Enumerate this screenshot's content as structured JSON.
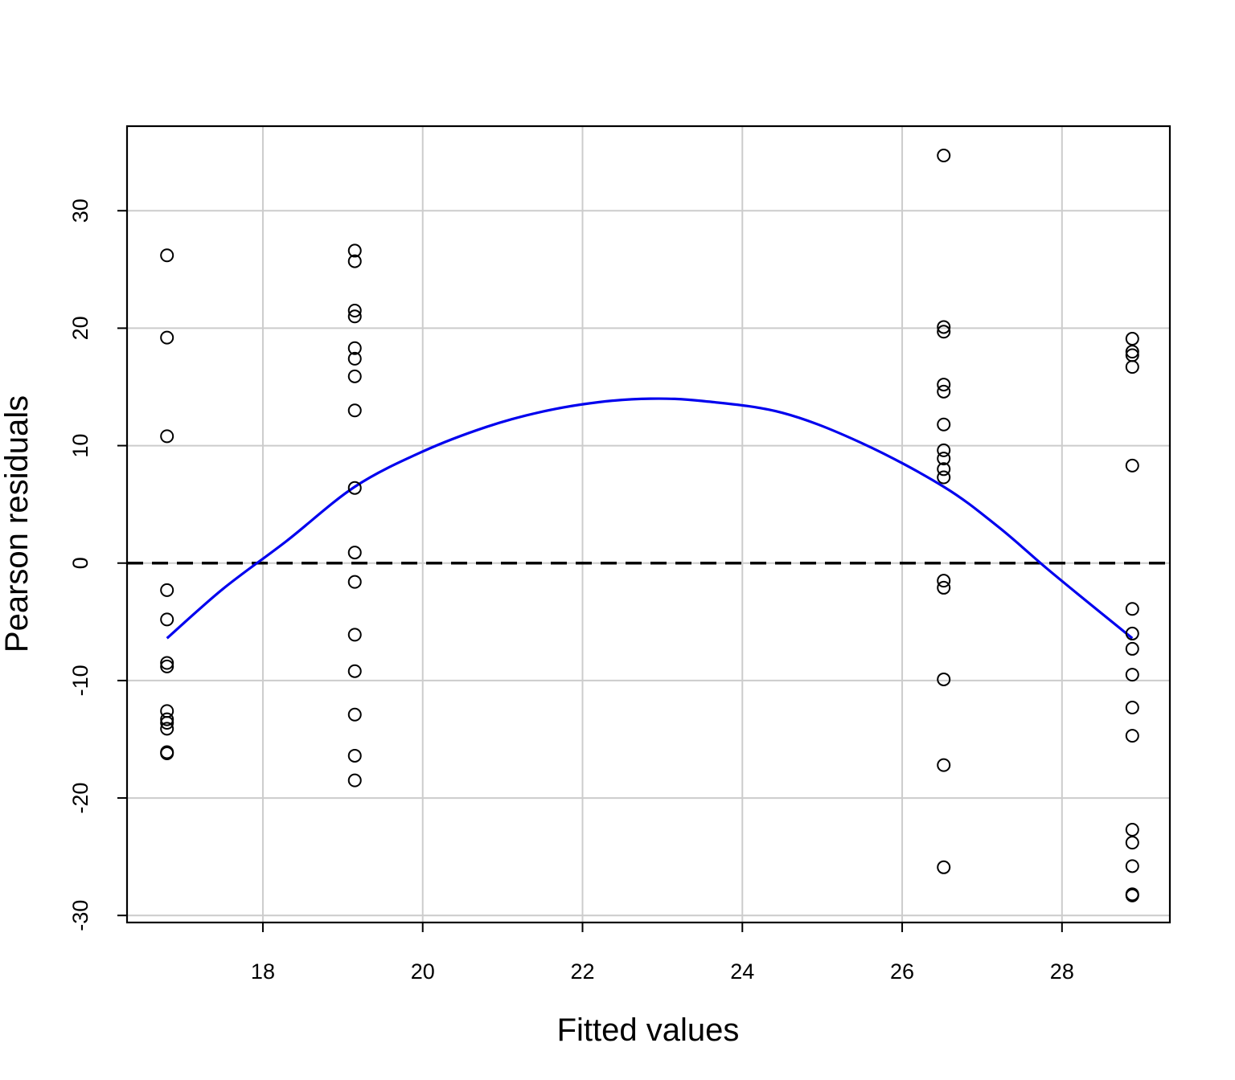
{
  "chart_data": {
    "type": "scatter",
    "title": "",
    "xlabel": "Fitted values",
    "ylabel": "Pearson residuals",
    "xlim": [
      16.3,
      29.35
    ],
    "ylim": [
      -30.6,
      37.2
    ],
    "x_ticks": [
      18,
      20,
      22,
      24,
      26,
      28
    ],
    "y_ticks": [
      -30,
      -20,
      -10,
      0,
      10,
      20,
      30
    ],
    "x_tick_labels": [
      "18",
      "20",
      "22",
      "24",
      "26",
      "28"
    ],
    "y_tick_labels": [
      "-30",
      "-20",
      "-10",
      "0",
      "10",
      "20",
      "30"
    ],
    "grid": true,
    "reference_line": {
      "y": 0,
      "style": "dashed",
      "color": "#000000"
    },
    "smooth_curve": {
      "color": "#0000ee",
      "x": [
        16.8,
        17.5,
        18.3,
        19.15,
        20.0,
        20.8,
        21.5,
        22.2,
        22.85,
        23.5,
        24.5,
        25.5,
        26.52,
        27.2,
        27.8,
        28.3,
        28.88
      ],
      "y": [
        -6.4,
        -2.2,
        1.9,
        6.5,
        9.5,
        11.6,
        12.9,
        13.7,
        14.0,
        13.8,
        12.8,
        10.2,
        6.5,
        3.1,
        -0.4,
        -3.2,
        -6.4
      ]
    },
    "series": [
      {
        "marker": "open-circle",
        "color": "#000000",
        "points": [
          [
            16.8,
            26.2
          ],
          [
            16.8,
            19.2
          ],
          [
            16.8,
            10.8
          ],
          [
            16.8,
            -2.3
          ],
          [
            16.8,
            -4.8
          ],
          [
            16.8,
            -8.5
          ],
          [
            16.8,
            -8.8
          ],
          [
            16.8,
            -12.6
          ],
          [
            16.8,
            -13.3
          ],
          [
            16.8,
            -13.6
          ],
          [
            16.8,
            -14.1
          ],
          [
            16.8,
            -16.1
          ],
          [
            16.8,
            -16.2
          ],
          [
            19.15,
            26.6
          ],
          [
            19.15,
            25.7
          ],
          [
            19.15,
            21.5
          ],
          [
            19.15,
            21.0
          ],
          [
            19.15,
            18.3
          ],
          [
            19.15,
            17.4
          ],
          [
            19.15,
            15.9
          ],
          [
            19.15,
            13.0
          ],
          [
            19.15,
            6.4
          ],
          [
            19.15,
            0.9
          ],
          [
            19.15,
            -1.6
          ],
          [
            19.15,
            -6.1
          ],
          [
            19.15,
            -9.2
          ],
          [
            19.15,
            -12.9
          ],
          [
            19.15,
            -16.4
          ],
          [
            19.15,
            -18.5
          ],
          [
            26.52,
            34.7
          ],
          [
            26.52,
            20.1
          ],
          [
            26.52,
            19.7
          ],
          [
            26.52,
            15.2
          ],
          [
            26.52,
            14.6
          ],
          [
            26.52,
            11.8
          ],
          [
            26.52,
            9.6
          ],
          [
            26.52,
            8.9
          ],
          [
            26.52,
            8.0
          ],
          [
            26.52,
            7.3
          ],
          [
            26.52,
            -1.5
          ],
          [
            26.52,
            -2.1
          ],
          [
            26.52,
            -9.9
          ],
          [
            26.52,
            -17.2
          ],
          [
            26.52,
            -25.9
          ],
          [
            28.88,
            19.1
          ],
          [
            28.88,
            18.0
          ],
          [
            28.88,
            17.7
          ],
          [
            28.88,
            16.7
          ],
          [
            28.88,
            8.3
          ],
          [
            28.88,
            -3.9
          ],
          [
            28.88,
            -6.0
          ],
          [
            28.88,
            -7.3
          ],
          [
            28.88,
            -9.5
          ],
          [
            28.88,
            -12.3
          ],
          [
            28.88,
            -14.7
          ],
          [
            28.88,
            -22.7
          ],
          [
            28.88,
            -23.8
          ],
          [
            28.88,
            -25.8
          ],
          [
            28.88,
            -28.2
          ],
          [
            28.88,
            -28.3
          ]
        ]
      }
    ]
  }
}
